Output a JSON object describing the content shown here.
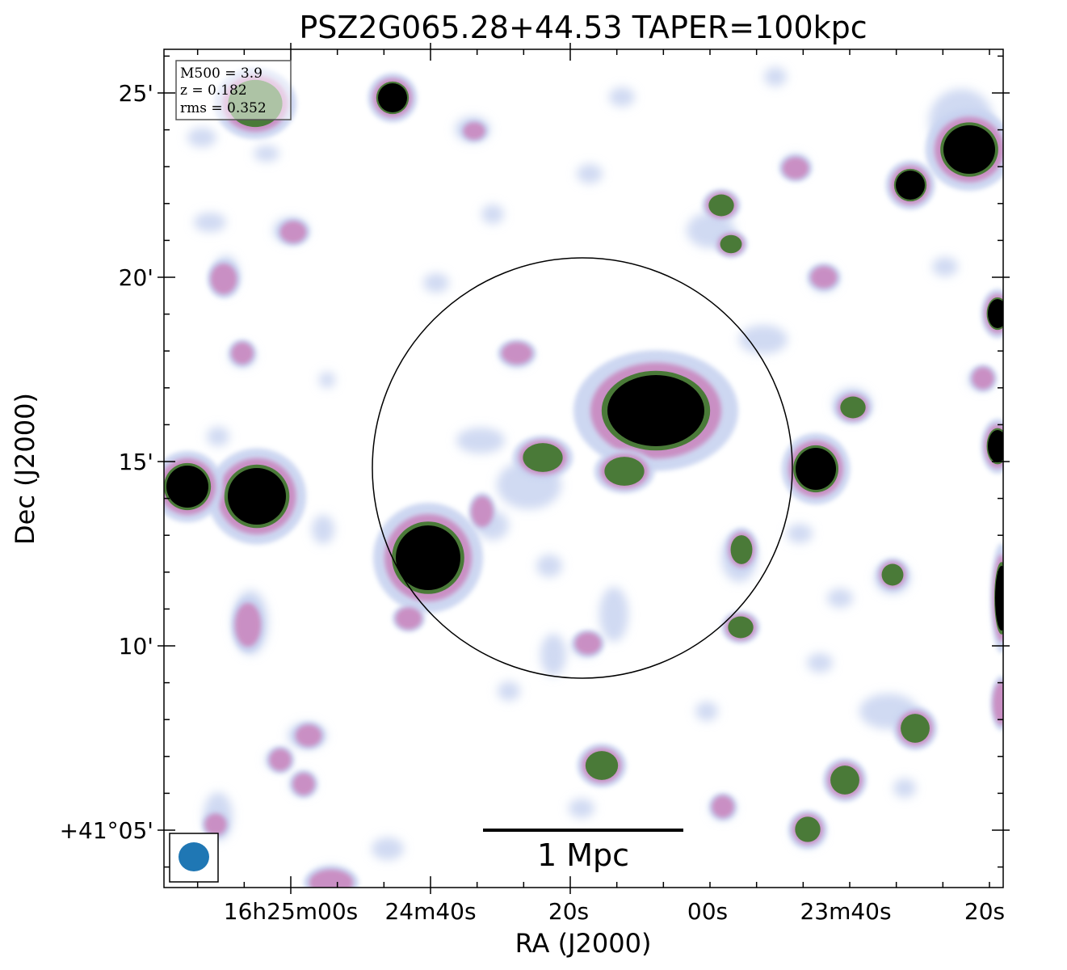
{
  "figure": {
    "title": "PSZ2G065.28+44.53 TAPER=100kpc",
    "xlabel": "RA (J2000)",
    "ylabel": "Dec (J2000)",
    "x_ticks": [
      "16h25m00s",
      "24m40s",
      "20s",
      "00s",
      "23m40s",
      "20s"
    ],
    "y_ticks": [
      "25'",
      "20'",
      "15'",
      "10'",
      "+41°05'"
    ],
    "info_box": {
      "lines": [
        "M500 = 3.9",
        "z = 0.182",
        "rms = 0.352"
      ]
    },
    "scale_bar": {
      "label": "1 Mpc"
    },
    "colors": {
      "beam": "#1f77b4",
      "faint": "#c8d3f0",
      "mid": "#c98bc1",
      "bright": "#4a7a38",
      "core": "#000000"
    }
  }
}
